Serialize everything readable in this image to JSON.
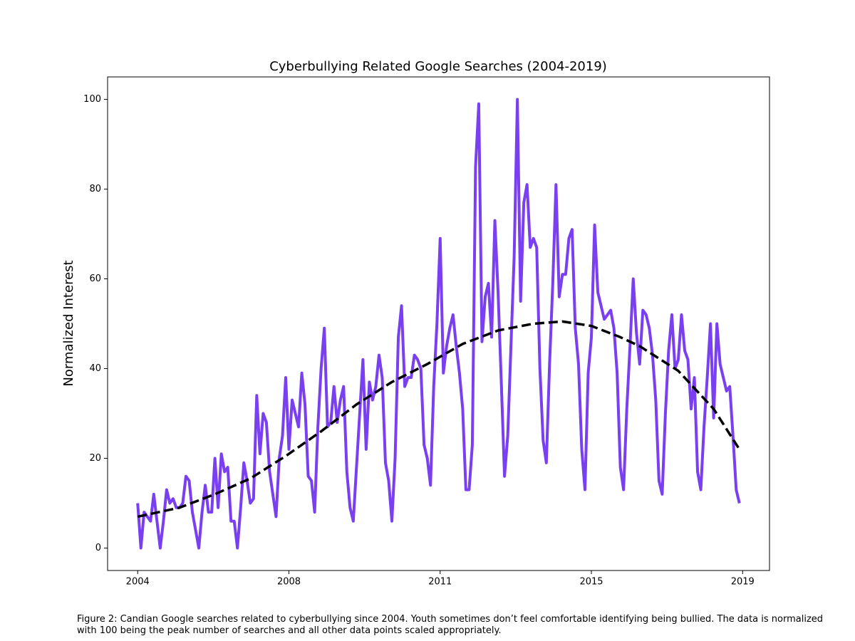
{
  "chart_data": {
    "type": "line",
    "title": "Cyberbullying Related Google Searches (2004-2019)",
    "y_label": "Normalized Interest",
    "caption": "Figure 2: Candian Google searches related to cyberbullying since 2004. Youth sometimes don’t feel comfortable identifying being bullied. The data is normalized with 100 being the peak number of searches and all other data points scaled appropriately.",
    "x": [
      0,
      1,
      2,
      3,
      4,
      5,
      6,
      7,
      8,
      9,
      10,
      11,
      12,
      13,
      14,
      15,
      16,
      17,
      18,
      19,
      20,
      21,
      22,
      23,
      24,
      25,
      26,
      27,
      28,
      29,
      30,
      31,
      32,
      33,
      34,
      35,
      36,
      37,
      38,
      39,
      40,
      41,
      42,
      43,
      44,
      45,
      46,
      47,
      48,
      49,
      50,
      51,
      52,
      53,
      54,
      55,
      56,
      57,
      58,
      59,
      60,
      61,
      62,
      63,
      64,
      65,
      66,
      67,
      68,
      69,
      70,
      71,
      72,
      73,
      74,
      75,
      76,
      77,
      78,
      79,
      80,
      81,
      82,
      83,
      84,
      85,
      86,
      87,
      88,
      89,
      90,
      91,
      92,
      93,
      94,
      95,
      96,
      97,
      98,
      99,
      100,
      101,
      102,
      103,
      104,
      105,
      106,
      107,
      108,
      109,
      110,
      111,
      112,
      113,
      114,
      115,
      116,
      117,
      118,
      119,
      120,
      121,
      122,
      123,
      124,
      125,
      126,
      127,
      128,
      129,
      130,
      131,
      132,
      133,
      134,
      135,
      136,
      137,
      138,
      139,
      140,
      141,
      142,
      143,
      144,
      145,
      146,
      147,
      148,
      149,
      150,
      151,
      152,
      153,
      154,
      155,
      156,
      157,
      158,
      159,
      160,
      161,
      162,
      163,
      164,
      165,
      166,
      167,
      168,
      169,
      170,
      171,
      172,
      173,
      174,
      175,
      176,
      177,
      178,
      179,
      180,
      181,
      182,
      183,
      184,
      185,
      186,
      187
    ],
    "series": [
      {
        "color": "#7a3ff0",
        "values": [
          10,
          0,
          8,
          7,
          6,
          12,
          6,
          0,
          6,
          13,
          10,
          11,
          9,
          9,
          10,
          16,
          15,
          8,
          4,
          0,
          8,
          14,
          8,
          8,
          20,
          9,
          21,
          17,
          18,
          6,
          6,
          0,
          9,
          19,
          15,
          10,
          11,
          34,
          21,
          30,
          28,
          17,
          12,
          7,
          20,
          25,
          38,
          22,
          33,
          30,
          27,
          39,
          32,
          16,
          15,
          8,
          27,
          40,
          49,
          27,
          28,
          36,
          28,
          33,
          36,
          17,
          9,
          6,
          18,
          30,
          42,
          22,
          37,
          33,
          36,
          43,
          38,
          19,
          15,
          6,
          20,
          47,
          54,
          36,
          38,
          38,
          43,
          42,
          40,
          23,
          20,
          14,
          36,
          50,
          69,
          39,
          45,
          49,
          52,
          45,
          39,
          31,
          13,
          13,
          23,
          85,
          99,
          46,
          56,
          59,
          47,
          73,
          57,
          37,
          16,
          25,
          45,
          65,
          100,
          55,
          77,
          81,
          67,
          69,
          67,
          40,
          24,
          19,
          41,
          59,
          81,
          56,
          61,
          61,
          69,
          71,
          49,
          41,
          22,
          13,
          39,
          47,
          72,
          57,
          54,
          51,
          52,
          53,
          49,
          39,
          18,
          13,
          31,
          45,
          60,
          48,
          41,
          53,
          52,
          49,
          43,
          33,
          15,
          12,
          30,
          44,
          52,
          40,
          42,
          52,
          44,
          42,
          31,
          38,
          17,
          13,
          27,
          38,
          50,
          29,
          50,
          41,
          38,
          35,
          36,
          25,
          13,
          10
        ]
      },
      {
        "color": "#000000",
        "dashed": true,
        "x": [
          0,
          13,
          24,
          35,
          46,
          57,
          68,
          79,
          90,
          101,
          112,
          123,
          132,
          141,
          150,
          156,
          168,
          179,
          187
        ],
        "values": [
          7,
          9,
          12,
          15.5,
          20.5,
          26,
          32,
          37,
          41,
          45.5,
          48.5,
          50,
          50.5,
          49.5,
          47,
          45,
          39.5,
          31,
          22
        ]
      }
    ],
    "xlim": [
      -9.35,
      196.35
    ],
    "xticks": [
      {
        "value": 0,
        "label": "2004"
      },
      {
        "value": 47,
        "label": "2008"
      },
      {
        "value": 94,
        "label": "2011"
      },
      {
        "value": 141,
        "label": "2015"
      },
      {
        "value": 188,
        "label": "2019"
      }
    ],
    "ylim": [
      -5,
      105
    ],
    "yticks": [
      0,
      20,
      40,
      60,
      80,
      100
    ],
    "grid": false
  }
}
